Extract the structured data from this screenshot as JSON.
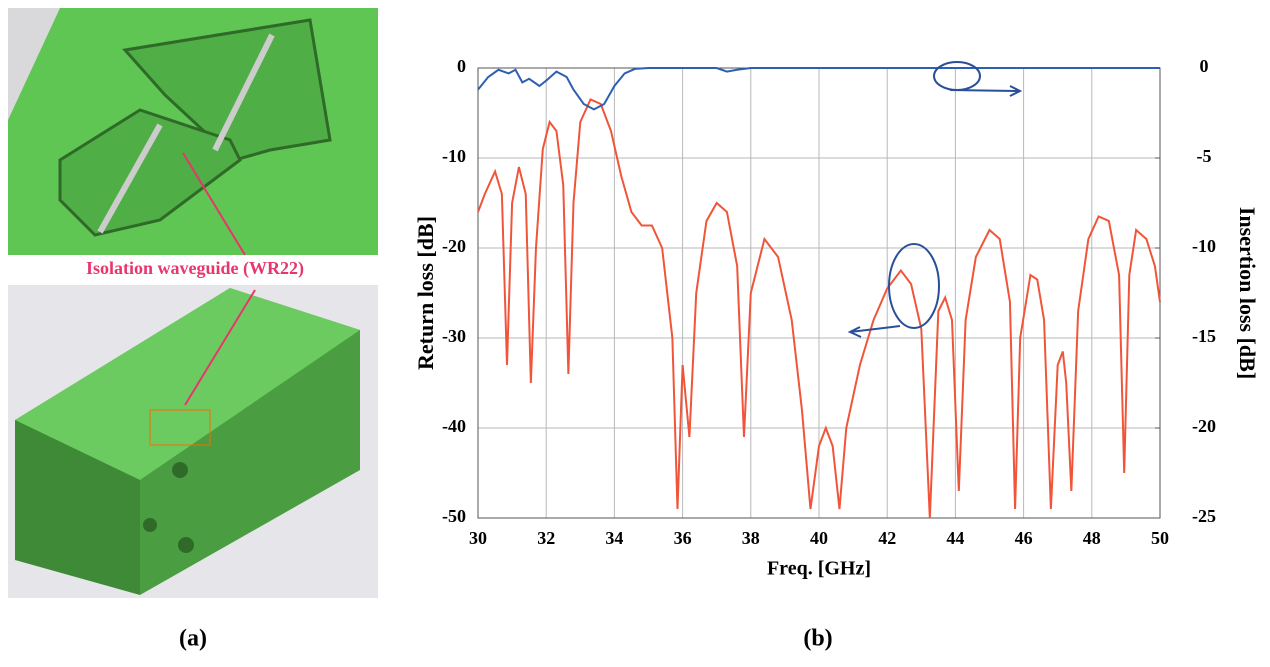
{
  "figure": {
    "annotation": "Isolation waveguide (WR22)",
    "panel_a": "(a)",
    "panel_b": "(b)"
  },
  "chart_data": {
    "type": "line",
    "xlabel": "Freq. [GHz]",
    "ylabel": "Return loss [dB]",
    "y2label": "Insertion loss [dB]",
    "xlim": [
      30,
      50
    ],
    "xticks": [
      30,
      32,
      34,
      36,
      38,
      40,
      42,
      44,
      46,
      48,
      50
    ],
    "ylim": [
      -50,
      0
    ],
    "yticks": [
      -50,
      -40,
      -30,
      -20,
      -10,
      0
    ],
    "y2lim": [
      -25,
      0
    ],
    "y2ticks": [
      -25,
      -20,
      -15,
      -10,
      -5,
      0
    ],
    "grid": true,
    "series": [
      {
        "color": "#f0553a",
        "axis": "y",
        "x": [
          30.0,
          30.2,
          30.5,
          30.7,
          30.85,
          31.0,
          31.2,
          31.4,
          31.55,
          31.7,
          31.9,
          32.1,
          32.3,
          32.5,
          32.65,
          32.8,
          33.0,
          33.3,
          33.6,
          33.9,
          34.2,
          34.5,
          34.8,
          35.1,
          35.4,
          35.7,
          35.85,
          36.0,
          36.2,
          36.4,
          36.7,
          37.0,
          37.3,
          37.6,
          37.8,
          38.0,
          38.4,
          38.8,
          39.2,
          39.5,
          39.75,
          40.0,
          40.2,
          40.4,
          40.6,
          40.8,
          41.2,
          41.6,
          42.0,
          42.4,
          42.7,
          43.0,
          43.25,
          43.5,
          43.7,
          43.9,
          44.1,
          44.3,
          44.6,
          45.0,
          45.3,
          45.6,
          45.75,
          45.9,
          46.2,
          46.4,
          46.6,
          46.8,
          47.0,
          47.15,
          47.25,
          47.4,
          47.6,
          47.9,
          48.2,
          48.5,
          48.8,
          48.95,
          49.1,
          49.3,
          49.6,
          49.85,
          50.0
        ],
        "values": [
          -16,
          -14,
          -11.5,
          -14,
          -33,
          -15,
          -11,
          -14,
          -35,
          -20,
          -9,
          -6,
          -7,
          -13,
          -34,
          -15,
          -6,
          -3.5,
          -4,
          -7,
          -12,
          -16,
          -17.5,
          -17.5,
          -20,
          -30,
          -49,
          -33,
          -41,
          -25,
          -17,
          -15,
          -16,
          -22,
          -41,
          -25,
          -19,
          -21,
          -28,
          -38,
          -49,
          -42,
          -40,
          -42,
          -49,
          -40,
          -33,
          -28,
          -24.5,
          -22.5,
          -24,
          -29,
          -50,
          -27,
          -25.5,
          -28,
          -47,
          -28,
          -21,
          -18,
          -19,
          -26,
          -49,
          -30,
          -23,
          -23.5,
          -28,
          -49,
          -33,
          -31.5,
          -35,
          -47,
          -27,
          -19,
          -16.5,
          -17,
          -23,
          -45,
          -23,
          -18,
          -19,
          -22,
          -26
        ]
      },
      {
        "color": "#2f5fb0",
        "axis": "y2",
        "x": [
          30.0,
          30.3,
          30.6,
          30.9,
          31.1,
          31.3,
          31.5,
          31.8,
          32.0,
          32.3,
          32.6,
          32.8,
          33.1,
          33.4,
          33.7,
          34.0,
          34.3,
          34.6,
          35.0,
          37.0,
          37.3,
          37.6,
          38.0,
          50.0
        ],
        "values": [
          -1.2,
          -0.5,
          -0.1,
          -0.3,
          -0.1,
          -0.8,
          -0.6,
          -1.0,
          -0.7,
          -0.2,
          -0.5,
          -1.2,
          -2.0,
          -2.3,
          -2.0,
          -1.0,
          -0.3,
          -0.05,
          0,
          0,
          -0.2,
          -0.1,
          0,
          0
        ]
      }
    ]
  }
}
